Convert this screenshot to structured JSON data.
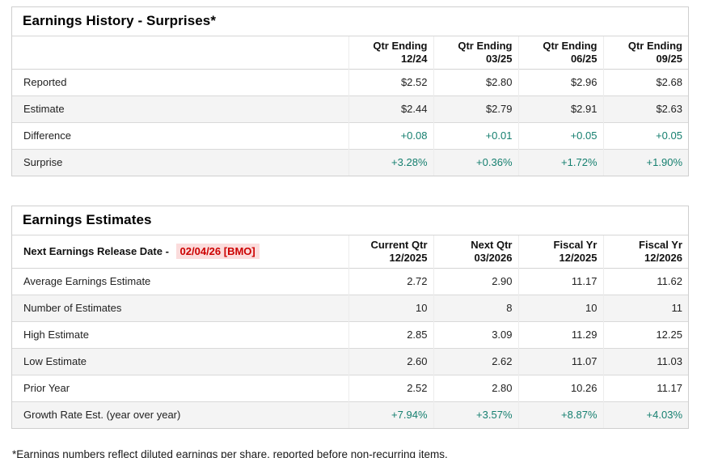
{
  "history": {
    "title": "Earnings History - Surprises*",
    "columns": [
      {
        "l1": "Qtr Ending",
        "l2": "12/24"
      },
      {
        "l1": "Qtr Ending",
        "l2": "03/25"
      },
      {
        "l1": "Qtr Ending",
        "l2": "06/25"
      },
      {
        "l1": "Qtr Ending",
        "l2": "09/25"
      }
    ],
    "rows": [
      {
        "label": "Reported",
        "values": [
          "$2.52",
          "$2.80",
          "$2.96",
          "$2.68"
        ]
      },
      {
        "label": "Estimate",
        "values": [
          "$2.44",
          "$2.79",
          "$2.91",
          "$2.63"
        ]
      },
      {
        "label": "Difference",
        "values": [
          "+0.08",
          "+0.01",
          "+0.05",
          "+0.05"
        ]
      },
      {
        "label": "Surprise",
        "values": [
          "+3.28%",
          "+0.36%",
          "+1.72%",
          "+1.90%"
        ]
      }
    ]
  },
  "estimates": {
    "title": "Earnings Estimates",
    "release_label": "Next Earnings Release Date - ",
    "release_date": "02/04/26 [BMO]",
    "columns": [
      {
        "l1": "Current Qtr",
        "l2": "12/2025"
      },
      {
        "l1": "Next Qtr",
        "l2": "03/2026"
      },
      {
        "l1": "Fiscal Yr",
        "l2": "12/2025"
      },
      {
        "l1": "Fiscal Yr",
        "l2": "12/2026"
      }
    ],
    "rows": [
      {
        "label": "Average Earnings Estimate",
        "values": [
          "2.72",
          "2.90",
          "11.17",
          "11.62"
        ]
      },
      {
        "label": "Number of Estimates",
        "values": [
          "10",
          "8",
          "10",
          "11"
        ]
      },
      {
        "label": "High Estimate",
        "values": [
          "2.85",
          "3.09",
          "11.29",
          "12.25"
        ]
      },
      {
        "label": "Low Estimate",
        "values": [
          "2.60",
          "2.62",
          "11.07",
          "11.03"
        ]
      },
      {
        "label": "Prior Year",
        "values": [
          "2.52",
          "2.80",
          "10.26",
          "11.17"
        ]
      },
      {
        "label": "Growth Rate Est. (year over year)",
        "values": [
          "+7.94%",
          "+3.57%",
          "+8.87%",
          "+4.03%"
        ]
      }
    ]
  },
  "footnote": "*Earnings numbers reflect diluted earnings per share, reported before non-recurring items.",
  "colors": {
    "positive_value": "#157f6f",
    "release_date_text": "#cc0000",
    "release_date_bg": "#fbdcdc",
    "row_stripe": "#f4f4f4",
    "border": "#cfcfcf"
  }
}
